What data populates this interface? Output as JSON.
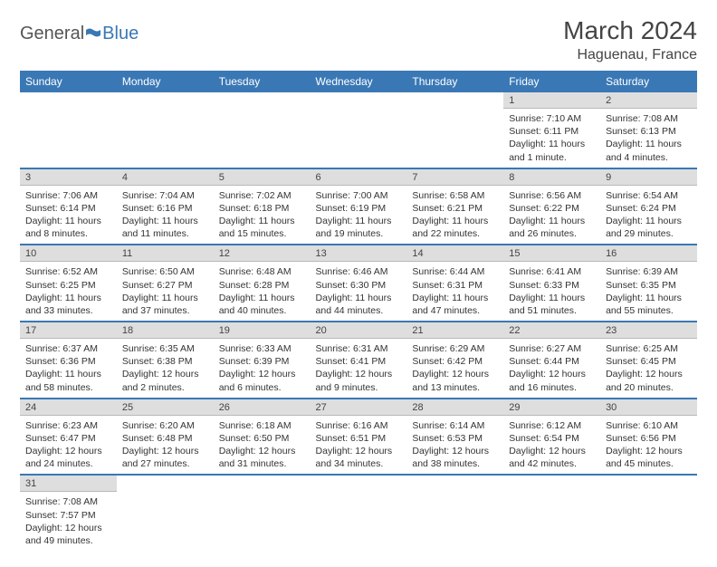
{
  "brand": {
    "part1": "General",
    "part2": "Blue"
  },
  "title": "March 2024",
  "location": "Haguenau, France",
  "colors": {
    "header_bg": "#3a78b5",
    "header_fg": "#ffffff",
    "daynum_bg": "#dedede",
    "text": "#333333",
    "sep": "#3a78b5"
  },
  "weekdays": [
    "Sunday",
    "Monday",
    "Tuesday",
    "Wednesday",
    "Thursday",
    "Friday",
    "Saturday"
  ],
  "weeks": [
    [
      {
        "n": "",
        "sr": "",
        "ss": "",
        "dl": ""
      },
      {
        "n": "",
        "sr": "",
        "ss": "",
        "dl": ""
      },
      {
        "n": "",
        "sr": "",
        "ss": "",
        "dl": ""
      },
      {
        "n": "",
        "sr": "",
        "ss": "",
        "dl": ""
      },
      {
        "n": "",
        "sr": "",
        "ss": "",
        "dl": ""
      },
      {
        "n": "1",
        "sr": "Sunrise: 7:10 AM",
        "ss": "Sunset: 6:11 PM",
        "dl": "Daylight: 11 hours and 1 minute."
      },
      {
        "n": "2",
        "sr": "Sunrise: 7:08 AM",
        "ss": "Sunset: 6:13 PM",
        "dl": "Daylight: 11 hours and 4 minutes."
      }
    ],
    [
      {
        "n": "3",
        "sr": "Sunrise: 7:06 AM",
        "ss": "Sunset: 6:14 PM",
        "dl": "Daylight: 11 hours and 8 minutes."
      },
      {
        "n": "4",
        "sr": "Sunrise: 7:04 AM",
        "ss": "Sunset: 6:16 PM",
        "dl": "Daylight: 11 hours and 11 minutes."
      },
      {
        "n": "5",
        "sr": "Sunrise: 7:02 AM",
        "ss": "Sunset: 6:18 PM",
        "dl": "Daylight: 11 hours and 15 minutes."
      },
      {
        "n": "6",
        "sr": "Sunrise: 7:00 AM",
        "ss": "Sunset: 6:19 PM",
        "dl": "Daylight: 11 hours and 19 minutes."
      },
      {
        "n": "7",
        "sr": "Sunrise: 6:58 AM",
        "ss": "Sunset: 6:21 PM",
        "dl": "Daylight: 11 hours and 22 minutes."
      },
      {
        "n": "8",
        "sr": "Sunrise: 6:56 AM",
        "ss": "Sunset: 6:22 PM",
        "dl": "Daylight: 11 hours and 26 minutes."
      },
      {
        "n": "9",
        "sr": "Sunrise: 6:54 AM",
        "ss": "Sunset: 6:24 PM",
        "dl": "Daylight: 11 hours and 29 minutes."
      }
    ],
    [
      {
        "n": "10",
        "sr": "Sunrise: 6:52 AM",
        "ss": "Sunset: 6:25 PM",
        "dl": "Daylight: 11 hours and 33 minutes."
      },
      {
        "n": "11",
        "sr": "Sunrise: 6:50 AM",
        "ss": "Sunset: 6:27 PM",
        "dl": "Daylight: 11 hours and 37 minutes."
      },
      {
        "n": "12",
        "sr": "Sunrise: 6:48 AM",
        "ss": "Sunset: 6:28 PM",
        "dl": "Daylight: 11 hours and 40 minutes."
      },
      {
        "n": "13",
        "sr": "Sunrise: 6:46 AM",
        "ss": "Sunset: 6:30 PM",
        "dl": "Daylight: 11 hours and 44 minutes."
      },
      {
        "n": "14",
        "sr": "Sunrise: 6:44 AM",
        "ss": "Sunset: 6:31 PM",
        "dl": "Daylight: 11 hours and 47 minutes."
      },
      {
        "n": "15",
        "sr": "Sunrise: 6:41 AM",
        "ss": "Sunset: 6:33 PM",
        "dl": "Daylight: 11 hours and 51 minutes."
      },
      {
        "n": "16",
        "sr": "Sunrise: 6:39 AM",
        "ss": "Sunset: 6:35 PM",
        "dl": "Daylight: 11 hours and 55 minutes."
      }
    ],
    [
      {
        "n": "17",
        "sr": "Sunrise: 6:37 AM",
        "ss": "Sunset: 6:36 PM",
        "dl": "Daylight: 11 hours and 58 minutes."
      },
      {
        "n": "18",
        "sr": "Sunrise: 6:35 AM",
        "ss": "Sunset: 6:38 PM",
        "dl": "Daylight: 12 hours and 2 minutes."
      },
      {
        "n": "19",
        "sr": "Sunrise: 6:33 AM",
        "ss": "Sunset: 6:39 PM",
        "dl": "Daylight: 12 hours and 6 minutes."
      },
      {
        "n": "20",
        "sr": "Sunrise: 6:31 AM",
        "ss": "Sunset: 6:41 PM",
        "dl": "Daylight: 12 hours and 9 minutes."
      },
      {
        "n": "21",
        "sr": "Sunrise: 6:29 AM",
        "ss": "Sunset: 6:42 PM",
        "dl": "Daylight: 12 hours and 13 minutes."
      },
      {
        "n": "22",
        "sr": "Sunrise: 6:27 AM",
        "ss": "Sunset: 6:44 PM",
        "dl": "Daylight: 12 hours and 16 minutes."
      },
      {
        "n": "23",
        "sr": "Sunrise: 6:25 AM",
        "ss": "Sunset: 6:45 PM",
        "dl": "Daylight: 12 hours and 20 minutes."
      }
    ],
    [
      {
        "n": "24",
        "sr": "Sunrise: 6:23 AM",
        "ss": "Sunset: 6:47 PM",
        "dl": "Daylight: 12 hours and 24 minutes."
      },
      {
        "n": "25",
        "sr": "Sunrise: 6:20 AM",
        "ss": "Sunset: 6:48 PM",
        "dl": "Daylight: 12 hours and 27 minutes."
      },
      {
        "n": "26",
        "sr": "Sunrise: 6:18 AM",
        "ss": "Sunset: 6:50 PM",
        "dl": "Daylight: 12 hours and 31 minutes."
      },
      {
        "n": "27",
        "sr": "Sunrise: 6:16 AM",
        "ss": "Sunset: 6:51 PM",
        "dl": "Daylight: 12 hours and 34 minutes."
      },
      {
        "n": "28",
        "sr": "Sunrise: 6:14 AM",
        "ss": "Sunset: 6:53 PM",
        "dl": "Daylight: 12 hours and 38 minutes."
      },
      {
        "n": "29",
        "sr": "Sunrise: 6:12 AM",
        "ss": "Sunset: 6:54 PM",
        "dl": "Daylight: 12 hours and 42 minutes."
      },
      {
        "n": "30",
        "sr": "Sunrise: 6:10 AM",
        "ss": "Sunset: 6:56 PM",
        "dl": "Daylight: 12 hours and 45 minutes."
      }
    ],
    [
      {
        "n": "31",
        "sr": "Sunrise: 7:08 AM",
        "ss": "Sunset: 7:57 PM",
        "dl": "Daylight: 12 hours and 49 minutes."
      },
      {
        "n": "",
        "sr": "",
        "ss": "",
        "dl": ""
      },
      {
        "n": "",
        "sr": "",
        "ss": "",
        "dl": ""
      },
      {
        "n": "",
        "sr": "",
        "ss": "",
        "dl": ""
      },
      {
        "n": "",
        "sr": "",
        "ss": "",
        "dl": ""
      },
      {
        "n": "",
        "sr": "",
        "ss": "",
        "dl": ""
      },
      {
        "n": "",
        "sr": "",
        "ss": "",
        "dl": ""
      }
    ]
  ]
}
